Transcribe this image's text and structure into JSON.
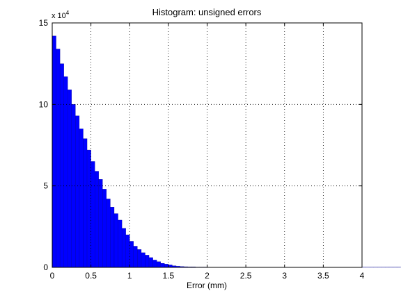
{
  "chart_data": {
    "type": "histogram",
    "title": "Histogram: unsigned errors",
    "x_label": "Error (mm)",
    "y_multiplier": "x 10",
    "y_multiplier_exponent": "4",
    "bins": [
      0,
      0.05,
      0.1,
      0.15,
      0.2,
      0.25,
      0.3,
      0.35,
      0.4,
      0.45,
      0.5,
      0.55,
      0.6,
      0.65,
      0.7,
      0.75,
      0.8,
      0.85,
      0.9,
      0.95,
      1,
      1.05,
      1.1,
      1.15,
      1.2,
      1.25,
      1.3,
      1.35,
      1.4,
      1.45,
      1.5,
      1.55,
      1.6,
      1.65,
      1.7,
      1.75,
      1.8,
      1.85,
      1.9,
      1.95,
      2,
      2.05,
      2.1,
      2.15,
      2.2,
      2.25,
      2.3,
      2.35,
      2.4,
      2.45,
      2.5,
      2.55,
      2.6,
      2.65,
      2.7,
      2.75,
      2.8,
      2.85,
      2.9,
      2.95,
      3,
      3.05,
      3.1,
      3.15,
      3.2,
      3.25,
      3.3,
      3.35,
      3.4,
      3.45,
      3.5,
      3.55,
      3.6,
      3.65,
      3.7,
      3.75,
      3.8,
      3.85,
      3.9,
      3.95,
      4,
      4.05,
      4.1,
      4.15,
      4.2,
      4.25,
      4.3,
      4.35,
      4.4,
      4.45,
      4.5
    ],
    "values": [
      14.2,
      13.4,
      12.5,
      11.7,
      10.9,
      10.0,
      9.3,
      8.5,
      7.9,
      7.2,
      6.5,
      5.9,
      5.4,
      4.8,
      4.2,
      3.7,
      3.3,
      2.9,
      2.4,
      2.0,
      1.6,
      1.3,
      1.1,
      0.9,
      0.75,
      0.6,
      0.45,
      0.35,
      0.25,
      0.2,
      0.15,
      0.1,
      0.07,
      0.05,
      0.04,
      0.03,
      0.03,
      0.02,
      0.02,
      0.02,
      0.01,
      0.01,
      0.01,
      0.01,
      0.01,
      0.01,
      0.01,
      0.01,
      0.01,
      0.01,
      0.01,
      0.01,
      0.01,
      0.01,
      0.01,
      0.01,
      0.01,
      0.01,
      0.01,
      0.01,
      0.01,
      0.01,
      0.01,
      0.01,
      0.01,
      0.01,
      0.01,
      0.01,
      0.01,
      0.01,
      0.01,
      0,
      0,
      0.01,
      0.01,
      0.01,
      0.01,
      0.01,
      0.01,
      0.01,
      0.01,
      0.01,
      0.01,
      0.01,
      0.01,
      0.01,
      0.01,
      0.01,
      0.01,
      0.01
    ],
    "color": "#0000ff",
    "xlim": [
      0,
      4
    ],
    "xticks": [
      0,
      0.5,
      1,
      1.5,
      2,
      2.5,
      3,
      3.5,
      4
    ],
    "ylim": [
      0,
      15
    ],
    "yticks": [
      0,
      5,
      10,
      15
    ],
    "grid": true
  }
}
